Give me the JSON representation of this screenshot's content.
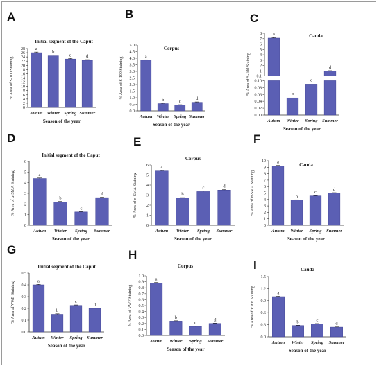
{
  "chart_data": [
    {
      "id": "A",
      "type": "bar",
      "title": "Initial segment of the Caput",
      "ylabel": "% Area of S-100 Staining",
      "xlabel": "Season of the year",
      "categories": [
        "Autum",
        "Winter",
        "Spring",
        "Summer"
      ],
      "values": [
        26,
        24.5,
        23,
        22.4
      ],
      "errors": [
        0.3,
        0.3,
        0.3,
        0.3
      ],
      "letters": [
        "a",
        "b",
        "c",
        "d"
      ],
      "ylim": [
        0,
        28
      ],
      "yticks": [
        0,
        2,
        4,
        6,
        8,
        10,
        12,
        14,
        16,
        18,
        20,
        22,
        24,
        26,
        28
      ]
    },
    {
      "id": "B",
      "type": "bar",
      "title": "Corpus",
      "ylabel": "% Area of S-100 Staining",
      "xlabel": "Season of the year",
      "categories": [
        "Autum",
        "Winter",
        "Spring",
        "Summer"
      ],
      "values": [
        3.85,
        0.55,
        0.45,
        0.65
      ],
      "errors": [
        0.03,
        0.03,
        0.02,
        0.03
      ],
      "letters": [
        "a",
        "b",
        "c",
        "d"
      ],
      "ylim": [
        0,
        5
      ],
      "yticks": [
        0.0,
        0.5,
        1.0,
        1.5,
        2.0,
        2.5,
        3.0,
        3.5,
        4.0,
        4.5,
        5.0
      ]
    },
    {
      "id": "C",
      "type": "bar",
      "title": "Cauda",
      "ylabel": "% Area of S-100 Staining",
      "xlabel": "Season of the year",
      "categories": [
        "Autum",
        "Winter",
        "Spring",
        "Summer"
      ],
      "values": [
        7.1,
        0.05,
        0.09,
        1.0
      ],
      "errors": [
        0.1,
        0.002,
        0.002,
        0.05
      ],
      "letters": [
        "a",
        "b",
        "c",
        "d"
      ],
      "broken_axis": {
        "lower": [
          0,
          0.1
        ],
        "upper": [
          0.1,
          8
        ]
      },
      "yticks_lower": [
        0.0,
        0.02,
        0.04,
        0.06,
        0.08,
        0.1
      ],
      "yticks_upper": [
        0.1,
        1,
        2,
        3,
        4,
        5,
        6,
        7,
        8
      ]
    },
    {
      "id": "D",
      "type": "bar",
      "title": "Initial segment of the Caput",
      "ylabel": "% Area of α-SMA Staining",
      "xlabel": "Season of the year",
      "categories": [
        "Autum",
        "Winter",
        "Spring",
        "Summer"
      ],
      "values": [
        4.4,
        2.2,
        1.25,
        2.6
      ],
      "errors": [
        0.05,
        0.04,
        0.03,
        0.04
      ],
      "letters": [
        "a",
        "b",
        "c",
        "d"
      ],
      "ylim": [
        0,
        6
      ],
      "yticks": [
        0,
        1,
        2,
        3,
        4,
        5,
        6
      ]
    },
    {
      "id": "E",
      "type": "bar",
      "title": "Corpus",
      "ylabel": "% Area of α-SMA Staining",
      "xlabel": "Season of the year",
      "categories": [
        "Autum",
        "Winter",
        "Spring",
        "Summer"
      ],
      "values": [
        5.4,
        2.7,
        3.35,
        3.5
      ],
      "errors": [
        0.05,
        0.05,
        0.05,
        0.05
      ],
      "letters": [
        "a",
        "b",
        "c",
        "d"
      ],
      "ylim": [
        0,
        6
      ],
      "yticks": [
        0,
        1,
        2,
        3,
        4,
        5,
        6
      ]
    },
    {
      "id": "F",
      "type": "bar",
      "title": "Cauda",
      "ylabel": "% Area of α-SMA Staining",
      "xlabel": "Season of the year",
      "categories": [
        "Autum",
        "Winter",
        "Spring",
        "Summer"
      ],
      "values": [
        9.2,
        3.9,
        4.55,
        5.0
      ],
      "errors": [
        0.08,
        0.05,
        0.05,
        0.05
      ],
      "letters": [
        "a",
        "b",
        "c",
        "d"
      ],
      "ylim": [
        0,
        10
      ],
      "yticks": [
        0,
        1,
        2,
        3,
        4,
        5,
        6,
        7,
        8,
        9,
        10
      ]
    },
    {
      "id": "G",
      "type": "bar",
      "title": "Initial segment of the Caput",
      "ylabel": "% Area of VWF Staining",
      "xlabel": "Season of the year",
      "categories": [
        "Autum",
        "Winter",
        "Spring",
        "Summer"
      ],
      "values": [
        0.4,
        0.15,
        0.225,
        0.2
      ],
      "errors": [
        0.004,
        0.004,
        0.004,
        0.004
      ],
      "letters": [
        "a",
        "b",
        "c",
        "d"
      ],
      "ylim": [
        0,
        0.5
      ],
      "yticks": [
        0.0,
        0.1,
        0.2,
        0.3,
        0.4,
        0.5
      ]
    },
    {
      "id": "H",
      "type": "bar",
      "title": "Corpus",
      "ylabel": "% Area of VWF Staining",
      "xlabel": "Season of the year",
      "categories": [
        "Autum",
        "Winter",
        "Spring",
        "Summer"
      ],
      "values": [
        0.88,
        0.24,
        0.15,
        0.2
      ],
      "errors": [
        0.008,
        0.006,
        0.006,
        0.006
      ],
      "letters": [
        "a",
        "b",
        "c",
        "d"
      ],
      "ylim": [
        0,
        1.0
      ],
      "yticks": [
        0.0,
        0.1,
        0.2,
        0.3,
        0.4,
        0.5,
        0.6,
        0.7,
        0.8,
        0.9,
        1.0
      ]
    },
    {
      "id": "I",
      "type": "bar",
      "title": "Cauda",
      "ylabel": "% Area of VWF Staining",
      "xlabel": "Season of the year",
      "categories": [
        "Autum",
        "Winter",
        "Spring",
        "Summer"
      ],
      "values": [
        1.0,
        0.28,
        0.32,
        0.24
      ],
      "errors": [
        0.01,
        0.008,
        0.008,
        0.006
      ],
      "letters": [
        "a",
        "b",
        "c",
        "d"
      ],
      "ylim": [
        0,
        1.5
      ],
      "yticks": [
        0.0,
        0.3,
        0.6,
        0.9,
        1.2,
        1.5
      ]
    }
  ],
  "colors": {
    "bar": "#5b5fb4",
    "bar_edge": "#3e4194",
    "axis": "#333333"
  }
}
